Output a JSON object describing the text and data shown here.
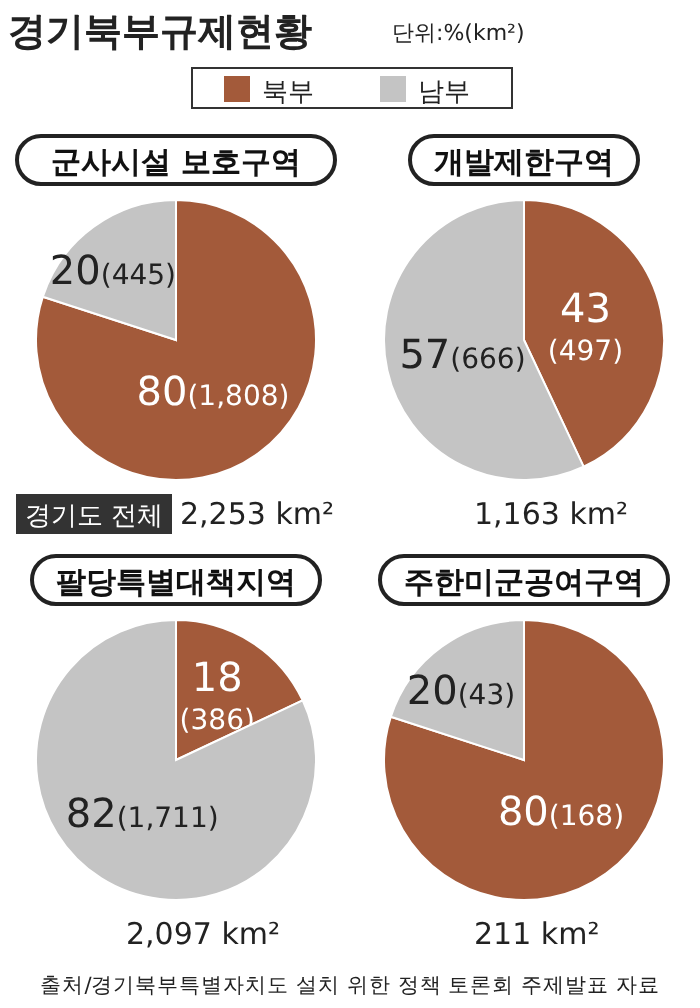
{
  "chart_data": [
    {
      "type": "pie",
      "title": "군사시설 보호구역",
      "subtitle": "경기북부규제현황",
      "ylabel": "단위:%(km²)",
      "legend": "top",
      "categories": [
        "북부",
        "남부"
      ],
      "values": [
        80,
        20
      ],
      "colors": [
        "#a35a3a",
        "#c4c4c4"
      ],
      "value_labels": [
        "80(1,808)",
        "20(445)"
      ],
      "annotations": [
        "경기도 전체",
        "2,253 km²"
      ]
    },
    {
      "type": "pie",
      "title": "개발제한구역",
      "categories": [
        null,
        null
      ],
      "values": [
        43,
        57
      ],
      "colors": [
        "#a35a3a",
        "#c4c4c4"
      ],
      "value_labels": [
        "43\n(497)",
        "57(666)"
      ],
      "annotations": [
        "1,163 km²"
      ]
    },
    {
      "type": "pie",
      "title": "팔당특별대책지역",
      "categories": [
        null,
        null
      ],
      "values": [
        18,
        82
      ],
      "colors": [
        "#a35a3a",
        "#c4c4c4"
      ],
      "value_labels": [
        "18\n(386)",
        "82(1,711)"
      ],
      "annotations": [
        "2,097 km²"
      ]
    },
    {
      "type": "pie",
      "title": "주한미군공여구역",
      "categories": [
        null,
        null
      ],
      "values": [
        80,
        20
      ],
      "colors": [
        "#a35a3a",
        "#c4c4c4"
      ],
      "value_labels": [
        "80(168)",
        "20(43)"
      ],
      "annotations": [
        "211 km²",
        "출처/경기북부특별자치도 설치 위한 정책 토론회 주제발표 자료"
      ]
    }
  ]
}
